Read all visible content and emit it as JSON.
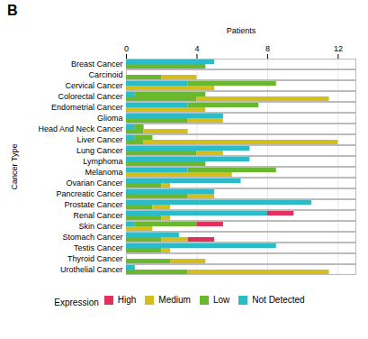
{
  "chart_data": {
    "type": "bar",
    "title": "B",
    "xlabel": "Patients",
    "ylabel": "Cancer Type",
    "orientation": "horizontal",
    "stacked": true,
    "grid": true,
    "legend": "bottom",
    "legend_title": "Expression",
    "legend_entries": [
      "High",
      "Medium",
      "Low",
      "Not Detected"
    ],
    "categories": [
      "Breast Cancer",
      "Carcinoid",
      "Cervical Cancer",
      "Colorectal Cancer",
      "Endometrial Cancer",
      "Glioma",
      "Head And Neck Cancer",
      "Liver Cancer",
      "Lung Cancer",
      "Lymphoma",
      "Melanoma",
      "Ovarian Cancer",
      "Pancreatic Cancer",
      "Prostate Cancer",
      "Renal Cancer",
      "Skin Cancer",
      "Stomach Cancer",
      "Testis Cancer",
      "Thyroid Cancer",
      "Urothelial Cancer"
    ],
    "xlim": [
      0,
      13
    ],
    "xticks": [
      0,
      4,
      8,
      12
    ],
    "groups": [
      {
        "series": [
          {
            "name": "Not Detected",
            "color": "#2bbcc8",
            "values": [
              5.0,
              0.0,
              3.5,
              0.5,
              3.5,
              5.5,
              0.5,
              0.5,
              7.0,
              7.0,
              3.5,
              6.5,
              5.0,
              10.5,
              8.0,
              0.5,
              3.0,
              8.5,
              0.0,
              0.5
            ]
          },
          {
            "name": "Low",
            "color": "#6ab82e",
            "values": [
              0.0,
              0.0,
              5.0,
              4.0,
              4.0,
              0.0,
              0.5,
              1.0,
              0.0,
              0.0,
              5.0,
              0.0,
              0.0,
              0.0,
              0.0,
              3.5,
              0.0,
              0.0,
              0.0,
              0.0
            ]
          },
          {
            "name": "High",
            "color": "#e03060",
            "values": [
              0.0,
              0.0,
              0.0,
              0.0,
              0.0,
              0.0,
              0.0,
              0.0,
              0.0,
              0.0,
              0.0,
              0.0,
              0.0,
              0.0,
              1.5,
              1.5,
              0.0,
              0.0,
              0.0,
              0.0
            ]
          }
        ]
      },
      {
        "series": [
          {
            "name": "Low",
            "color": "#6ab82e",
            "values": [
              4.5,
              2.0,
              0.0,
              4.0,
              0.0,
              3.5,
              1.0,
              1.0,
              4.0,
              4.5,
              0.0,
              2.0,
              3.5,
              1.5,
              2.0,
              0.0,
              2.0,
              2.0,
              2.5,
              3.5
            ]
          },
          {
            "name": "Medium",
            "color": "#d4be1e",
            "values": [
              0.0,
              2.0,
              5.0,
              7.5,
              4.5,
              2.0,
              2.5,
              11.0,
              1.5,
              0.0,
              6.0,
              0.5,
              1.5,
              1.0,
              0.5,
              1.5,
              1.5,
              0.5,
              2.0,
              8.0
            ]
          },
          {
            "name": "High",
            "color": "#e03060",
            "values": [
              0.0,
              0.0,
              0.0,
              0.0,
              0.0,
              0.0,
              0.0,
              0.0,
              0.0,
              0.0,
              0.0,
              0.0,
              0.0,
              0.0,
              0.0,
              0.0,
              1.5,
              0.0,
              0.0,
              0.0
            ]
          }
        ]
      }
    ]
  }
}
